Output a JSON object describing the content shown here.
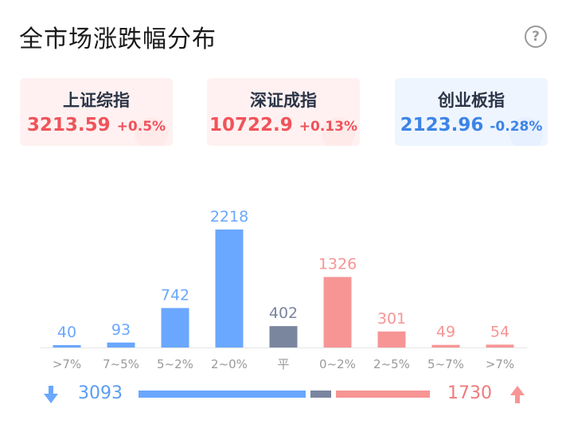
{
  "title": "全市场涨跌幅分布",
  "help_icon": "question-circle-icon",
  "indices": [
    {
      "name": "上证综指",
      "value": "3213.59",
      "change": "+0.5%",
      "direction": "up"
    },
    {
      "name": "深证成指",
      "value": "10722.9",
      "change": "+0.13%",
      "direction": "up"
    },
    {
      "name": "创业板指",
      "value": "2123.96",
      "change": "-0.28%",
      "direction": "down"
    }
  ],
  "colors": {
    "fall": "#6aa7ff",
    "flat": "#7a869e",
    "rise": "#f79595",
    "fall_label": "#6aa7ff",
    "flat_label": "#7a869e",
    "rise_label": "#f79595"
  },
  "chart_data": {
    "type": "bar",
    "categories": [
      ">7%",
      "7~5%",
      "5~2%",
      "2~0%",
      "平",
      "0~2%",
      "2~5%",
      "5~7%",
      ">7%"
    ],
    "values": [
      40,
      93,
      742,
      2218,
      402,
      1326,
      301,
      49,
      54
    ],
    "groups": [
      "fall",
      "fall",
      "fall",
      "fall",
      "flat",
      "rise",
      "rise",
      "rise",
      "rise"
    ],
    "ylim": [
      0,
      2218
    ],
    "grid": false,
    "xlabel": "",
    "ylabel": ""
  },
  "summary": {
    "fall_count": "3093",
    "rise_count": "1730",
    "fall_icon": "arrow-down-icon",
    "rise_icon": "arrow-up-icon"
  }
}
